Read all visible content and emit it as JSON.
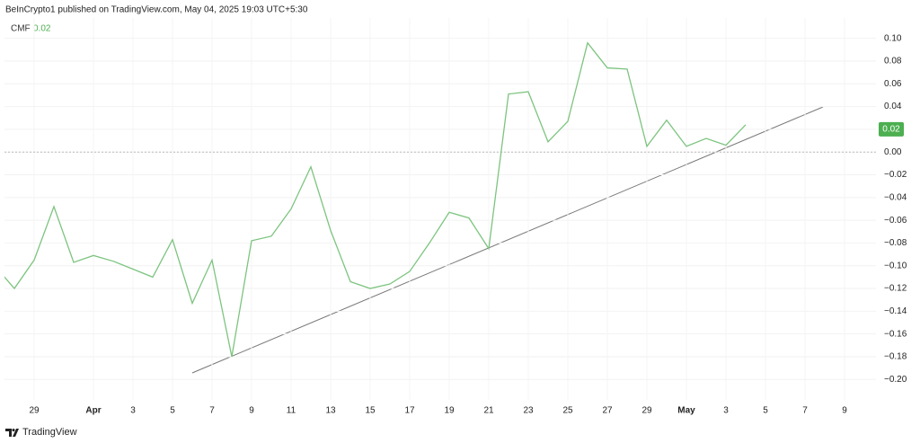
{
  "header": "BeInCrypto1 published on TradingView.com, May 04, 2025 19:03 UTC+5:30",
  "brand": "TradingView",
  "chart_data": {
    "type": "line",
    "categories": [
      null,
      null,
      "29",
      null,
      null,
      "Apr",
      null,
      "3",
      null,
      "5",
      null,
      "7",
      null,
      "9",
      null,
      "11",
      null,
      "13",
      null,
      "15",
      null,
      "17",
      null,
      "19",
      null,
      "21",
      null,
      "23",
      null,
      "25",
      null,
      "27",
      null,
      "29",
      null,
      "May",
      null,
      "3",
      null,
      "5",
      null,
      "7",
      null,
      "9"
    ],
    "series": [
      {
        "name": "CMF",
        "color": "#7cc47f",
        "values": [
          -0.1,
          -0.12,
          -0.095,
          -0.048,
          -0.097,
          -0.091,
          -0.096,
          -0.103,
          -0.11,
          -0.077,
          -0.133,
          -0.095,
          -0.18,
          -0.078,
          -0.074,
          -0.05,
          -0.013,
          -0.069,
          -0.114,
          -0.12,
          -0.116,
          -0.105,
          -0.08,
          -0.053,
          -0.058,
          -0.085,
          0.051,
          0.053,
          0.009,
          0.027,
          0.096,
          0.074,
          0.073,
          0.005,
          0.028,
          0.005,
          0.012,
          0.006,
          0.024,
          null,
          null,
          null,
          null,
          null
        ]
      }
    ],
    "current_value": 0.02,
    "ylim": [
      -0.214,
      0.11
    ],
    "yticks": [
      {
        "value": 0.1,
        "label": "0.10"
      },
      0.08,
      0.06,
      0.04,
      0.02,
      {
        "value": 0,
        "label": "0.00"
      },
      {
        "value": -0.02,
        "label": "−0.02"
      },
      {
        "value": -0.04,
        "label": "−0.04"
      },
      {
        "value": -0.06,
        "label": "−0.06"
      },
      {
        "value": -0.08,
        "label": "−0.08"
      },
      {
        "value": -0.1,
        "label": "−0.10"
      },
      {
        "value": -0.12,
        "label": "−0.12"
      },
      {
        "value": -0.14,
        "label": "−0.14"
      },
      {
        "value": -0.16,
        "label": "−0.16"
      },
      {
        "value": -0.18,
        "label": "−0.18"
      },
      {
        "value": -0.2,
        "label": "−0.20"
      }
    ],
    "grid": true
  }
}
